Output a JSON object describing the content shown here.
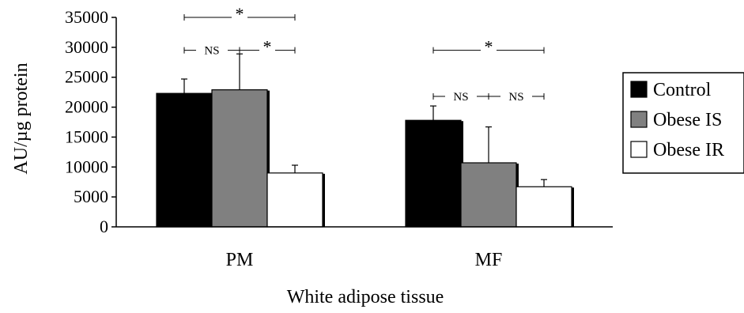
{
  "chart_data": {
    "type": "bar",
    "xlabel": "White adipose tissue",
    "ylabel": "AU/µg protein",
    "ylim": [
      0,
      35000
    ],
    "yticks": [
      0,
      5000,
      10000,
      15000,
      20000,
      25000,
      30000,
      35000
    ],
    "categories": [
      "PM",
      "MF"
    ],
    "series": [
      {
        "name": "Control",
        "color": "#000000",
        "values": [
          22300,
          17800
        ],
        "errors": [
          2400,
          2400
        ]
      },
      {
        "name": "Obese IS",
        "color": "#808080",
        "values": [
          22900,
          10700
        ],
        "errors": [
          6000,
          6000
        ]
      },
      {
        "name": "Obese IR",
        "color": "#ffffff",
        "values": [
          9000,
          6700
        ],
        "errors": [
          1300,
          1200
        ]
      }
    ],
    "legend_position": "right",
    "grid": false,
    "significance": [
      {
        "category": "PM",
        "from": "Control",
        "to": "Obese IR",
        "label": "*",
        "y": 35000
      },
      {
        "category": "PM",
        "from": "Control",
        "to": "Obese IS",
        "label": "NS",
        "y": 29500
      },
      {
        "category": "PM",
        "from": "Obese IS",
        "to": "Obese IR",
        "label": "*",
        "y": 29500
      },
      {
        "category": "MF",
        "from": "Control",
        "to": "Obese IR",
        "label": "*",
        "y": 29500
      },
      {
        "category": "MF",
        "from": "Control",
        "to": "Obese IS",
        "label": "NS",
        "y": 21800
      },
      {
        "category": "MF",
        "from": "Obese IS",
        "to": "Obese IR",
        "label": "NS",
        "y": 21800
      }
    ]
  }
}
